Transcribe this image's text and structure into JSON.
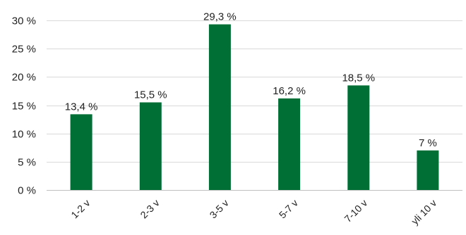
{
  "chart_data": {
    "type": "bar",
    "title": "",
    "xlabel": "",
    "ylabel": "",
    "categories": [
      "1-2 v",
      "2-3 v",
      "3-5 v",
      "5-7 v",
      "7-10 v",
      "yli 10 v"
    ],
    "values": [
      13.4,
      15.5,
      29.3,
      16.2,
      18.5,
      7
    ],
    "data_labels": [
      "13,4 %",
      "15,5 %",
      "29,3 %",
      "16,2 %",
      "18,5 %",
      "7 %"
    ],
    "ylim": [
      0,
      30
    ],
    "y_ticks": [
      0,
      5,
      10,
      15,
      20,
      25,
      30
    ],
    "y_tick_labels": [
      "0 %",
      "5 %",
      "10 %",
      "15 %",
      "20 %",
      "25 %",
      "30 %"
    ],
    "grid": true,
    "legend": false,
    "bar_color": "#006f35"
  }
}
